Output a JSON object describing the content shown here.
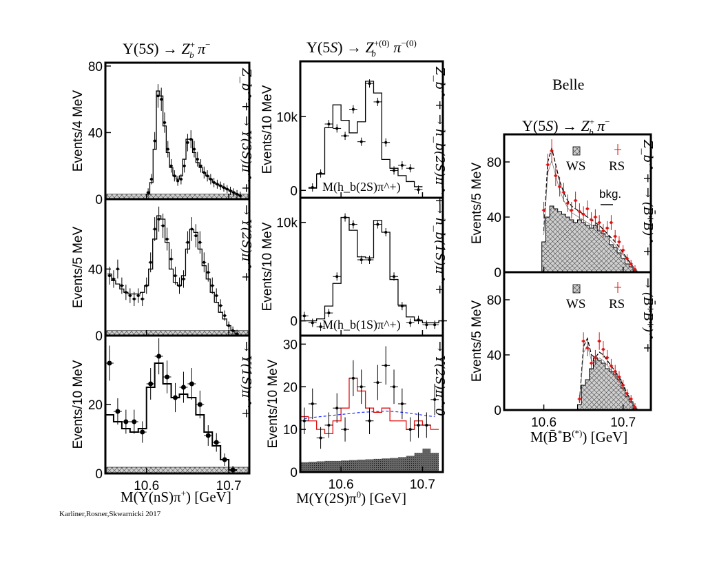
{
  "credit": "Karliner,Rosner,Skwarnicki 2017",
  "belle_label": "Belle",
  "columns": [
    {
      "title_html": "Υ(5<i>S</i>) → <i>Z</i><tspan dy='-8' font-size='12'>+</tspan><tspan dx='-7' dy='14' font-size='12'><i>b</i></tspan><tspan dy='-6'> <i>π</i></tspan><tspan dy='-8' font-size='12'>−</tspan>",
      "title": "Υ(5S) → Z_b^+ π^−",
      "xlabel": "M(Υ(nS)π⁺) [GeV]"
    },
    {
      "title": "Υ(5S) → Z_b^+(0) π^−(0)",
      "xlabel": "M(Υ(2S)π⁰) [GeV]"
    },
    {
      "title": "Υ(5S) → Z_b^+ π^−",
      "xlabel": "M(B̄*B(*)) [GeV]"
    }
  ],
  "chart_data": [
    {
      "type": "histogram",
      "panel": "Y3S",
      "xlim": [
        10.55,
        10.725
      ],
      "ylim": [
        0,
        82
      ],
      "yticks": [
        0,
        40,
        80
      ],
      "ylabel": "Events/4 MeV",
      "channel": "Z_b^+ → Υ(3S)π^+",
      "xticks": [],
      "x": [
        10.602,
        10.606,
        10.61,
        10.614,
        10.618,
        10.622,
        10.626,
        10.63,
        10.634,
        10.638,
        10.642,
        10.646,
        10.65,
        10.654,
        10.658,
        10.662,
        10.666,
        10.67,
        10.674,
        10.678,
        10.682,
        10.686,
        10.69,
        10.694,
        10.698,
        10.702,
        10.706,
        10.71,
        10.714
      ],
      "y": [
        4,
        12,
        35,
        62,
        60,
        46,
        30,
        20,
        14,
        11,
        12,
        20,
        34,
        36,
        30,
        24,
        20,
        16,
        14,
        12,
        10,
        9,
        8,
        7,
        6,
        5,
        4,
        3,
        2
      ],
      "fit": [
        3,
        10,
        30,
        65,
        62,
        44,
        28,
        19,
        14,
        12,
        14,
        24,
        36,
        36,
        28,
        22,
        19,
        16,
        14,
        12,
        10,
        9,
        8,
        7,
        6,
        5,
        4,
        3,
        2
      ]
    },
    {
      "type": "histogram",
      "panel": "Y2S",
      "xlim": [
        10.55,
        10.725
      ],
      "ylim": [
        0,
        82
      ],
      "yticks": [
        0,
        40
      ],
      "ylabel": "Events/5 MeV",
      "channel": "→ Υ(2S)π^+",
      "xticks": [],
      "x": [
        10.555,
        10.56,
        10.565,
        10.57,
        10.575,
        10.58,
        10.585,
        10.59,
        10.595,
        10.6,
        10.605,
        10.61,
        10.615,
        10.62,
        10.625,
        10.63,
        10.635,
        10.64,
        10.645,
        10.65,
        10.655,
        10.66,
        10.665,
        10.67,
        10.675,
        10.68,
        10.685,
        10.69,
        10.695,
        10.7,
        10.705,
        10.71
      ],
      "y": [
        36,
        34,
        40,
        30,
        26,
        24,
        22,
        24,
        22,
        30,
        44,
        64,
        70,
        66,
        58,
        46,
        36,
        30,
        34,
        56,
        64,
        60,
        56,
        44,
        38,
        30,
        24,
        18,
        12,
        6,
        3,
        1
      ],
      "fit": [
        37,
        33,
        31,
        28,
        26,
        25,
        25,
        25,
        26,
        30,
        40,
        58,
        72,
        70,
        56,
        40,
        32,
        30,
        36,
        52,
        64,
        62,
        52,
        42,
        34,
        26,
        20,
        14,
        10,
        6,
        3,
        1
      ]
    },
    {
      "type": "histogram",
      "panel": "Y1S",
      "xlim": [
        10.55,
        10.725
      ],
      "ylim": [
        0,
        40
      ],
      "yticks": [
        0,
        20
      ],
      "ylabel": "Events/10 MeV",
      "channel": "→ Υ(1S)π^+",
      "xticks": [
        "10.6",
        "10.7"
      ],
      "x": [
        10.555,
        10.565,
        10.575,
        10.585,
        10.595,
        10.605,
        10.615,
        10.625,
        10.635,
        10.645,
        10.655,
        10.665,
        10.675,
        10.685,
        10.695,
        10.705
      ],
      "y": [
        32,
        18,
        15,
        15,
        12,
        26,
        34,
        28,
        22,
        25,
        26,
        20,
        11,
        9,
        4,
        1
      ],
      "fit": [
        17,
        15,
        13,
        12,
        13,
        25,
        32,
        26,
        22,
        23,
        22,
        17,
        12,
        8,
        4,
        1
      ]
    },
    {
      "type": "histogram",
      "panel": "hb2S",
      "xlim": [
        10.55,
        10.725
      ],
      "ylim": [
        -1000,
        17500
      ],
      "yticks": [
        0,
        10000
      ],
      "ytick_labels": [
        "0",
        "10k"
      ],
      "ylabel": "Events/10 MeV",
      "channel": "Z_b^+ → h_b(2S)π^+",
      "inlabel": "M(h_b(2S)π^+)",
      "xticks": [],
      "x": [
        10.565,
        10.575,
        10.585,
        10.595,
        10.605,
        10.615,
        10.625,
        10.635,
        10.645,
        10.655,
        10.665,
        10.675,
        10.685,
        10.695
      ],
      "y": [
        400,
        2300,
        9000,
        8400,
        7400,
        11000,
        6600,
        14500,
        12000,
        6500,
        2700,
        3400,
        3000,
        100
      ],
      "fit": [
        300,
        2200,
        8500,
        11600,
        9500,
        7800,
        9300,
        14800,
        13200,
        4200,
        3000,
        2000,
        1200,
        500
      ]
    },
    {
      "type": "histogram",
      "panel": "hb1S",
      "xlim": [
        10.55,
        10.725
      ],
      "ylim": [
        -1500,
        12500
      ],
      "yticks": [
        0,
        10000
      ],
      "ytick_labels": [
        "0",
        "10k"
      ],
      "ylabel": "Events/10 MeV",
      "channel": "→ h_b(1S)π^+",
      "inlabel": "M(h_b(1S)π^+)",
      "xticks": [],
      "x": [
        10.555,
        10.565,
        10.575,
        10.585,
        10.595,
        10.605,
        10.615,
        10.625,
        10.635,
        10.645,
        10.655,
        10.665,
        10.675,
        10.685,
        10.695,
        10.705,
        10.715,
        10.725
      ],
      "y": [
        500,
        -200,
        -600,
        800,
        4500,
        10500,
        9800,
        6200,
        6200,
        9800,
        9000,
        4500,
        1500,
        -200,
        100,
        -400,
        -400,
        0
      ],
      "fit": [
        0,
        0,
        200,
        1500,
        3800,
        10500,
        9200,
        6500,
        6400,
        10200,
        9000,
        4200,
        1600,
        400,
        0,
        -200,
        -200,
        0
      ]
    },
    {
      "type": "histogram",
      "panel": "Y2Spi0",
      "xlim": [
        10.55,
        10.725
      ],
      "ylim": [
        0,
        32
      ],
      "yticks": [
        0,
        10,
        20,
        30
      ],
      "ylabel": "Events/10 MeV",
      "channel": "→ Υ(2S)π^0",
      "xticks": [
        "10.6",
        "10.7"
      ],
      "x": [
        10.555,
        10.565,
        10.575,
        10.585,
        10.595,
        10.605,
        10.615,
        10.625,
        10.635,
        10.645,
        10.655,
        10.665,
        10.675,
        10.685,
        10.695,
        10.705,
        10.715
      ],
      "y": [
        12,
        16,
        8,
        11,
        15,
        10,
        22,
        20,
        12,
        21,
        25,
        20,
        16,
        10,
        11,
        11,
        17
      ],
      "fit": [
        13,
        12,
        10,
        9,
        12,
        15,
        22,
        19,
        15,
        14,
        15,
        12,
        12,
        10,
        12,
        11,
        10
      ],
      "bkg_dashed": [
        12.5,
        12.8,
        13.0,
        13.2,
        13.4,
        13.6,
        13.8,
        14.0,
        14.1,
        14.2,
        14.3,
        14.2,
        14.0,
        13.8,
        13.5,
        13.2,
        13.0
      ],
      "shaded": [
        2.3,
        2.4,
        2.5,
        2.6,
        2.6,
        2.7,
        2.8,
        2.9,
        3.0,
        3.1,
        3.2,
        3.3,
        3.5,
        3.8,
        4.5,
        5.5,
        4.5
      ]
    },
    {
      "type": "histogram",
      "panel": "BstarB",
      "xlim": [
        10.55,
        10.735
      ],
      "ylim": [
        0,
        100
      ],
      "yticks": [
        0,
        40,
        80
      ],
      "ylabel": "Events/5 MeV",
      "channel": "Z_b^+ → (B̄*B)^+",
      "legend": [
        "WS",
        "RS",
        "bkg."
      ],
      "xticks": [],
      "x": [
        10.6,
        10.605,
        10.61,
        10.615,
        10.62,
        10.625,
        10.63,
        10.635,
        10.64,
        10.645,
        10.65,
        10.655,
        10.66,
        10.665,
        10.67,
        10.675,
        10.68,
        10.685,
        10.69,
        10.695,
        10.7,
        10.705,
        10.71,
        10.715
      ],
      "y": [
        45,
        78,
        88,
        70,
        62,
        58,
        50,
        45,
        52,
        44,
        42,
        46,
        38,
        40,
        36,
        30,
        32,
        36,
        26,
        22,
        16,
        10,
        6,
        2
      ],
      "fit": [
        30,
        80,
        90,
        78,
        66,
        58,
        52,
        48,
        46,
        44,
        42,
        40,
        38,
        36,
        34,
        31,
        28,
        25,
        22,
        18,
        14,
        10,
        6,
        2
      ],
      "ws": [
        22,
        40,
        48,
        46,
        44,
        42,
        40,
        38,
        36,
        38,
        36,
        34,
        32,
        34,
        30,
        28,
        26,
        20,
        18,
        14,
        10,
        6,
        4,
        1
      ]
    },
    {
      "type": "histogram",
      "panel": "BstarBstar",
      "xlim": [
        10.55,
        10.735
      ],
      "ylim": [
        0,
        100
      ],
      "yticks": [
        0,
        40,
        80
      ],
      "ylabel": "Events/5 MeV",
      "channel": "→ (B̄*B*)^+",
      "legend": [
        "WS",
        "RS"
      ],
      "xticks": [
        "10.6",
        "10.7"
      ],
      "x": [
        10.645,
        10.65,
        10.655,
        10.66,
        10.665,
        10.67,
        10.675,
        10.68,
        10.685,
        10.69,
        10.695,
        10.7,
        10.705,
        10.71,
        10.715
      ],
      "y": [
        8,
        50,
        45,
        34,
        38,
        50,
        44,
        38,
        32,
        28,
        24,
        18,
        12,
        8,
        2
      ],
      "fit": [
        6,
        46,
        52,
        40,
        38,
        42,
        40,
        36,
        32,
        28,
        24,
        18,
        12,
        7,
        2
      ],
      "ws": [
        4,
        18,
        22,
        30,
        38,
        36,
        34,
        30,
        28,
        26,
        22,
        16,
        10,
        6,
        1
      ]
    }
  ]
}
